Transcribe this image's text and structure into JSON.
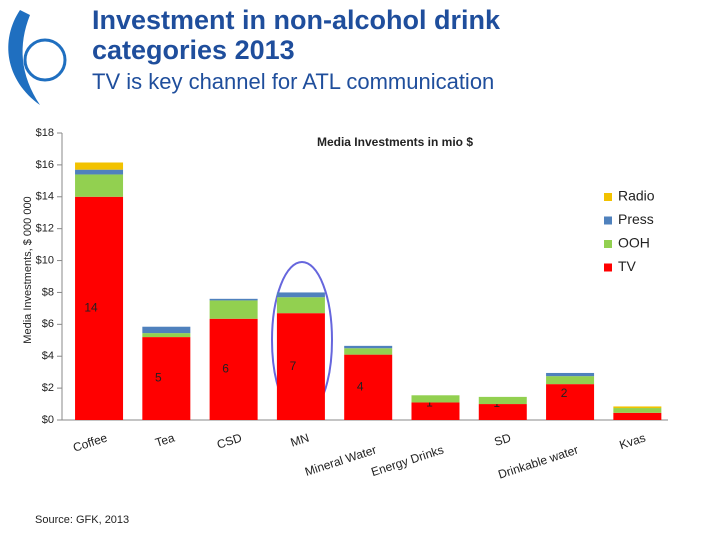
{
  "header": {
    "title": "Investment in non-alcohol drink categories 2013",
    "subtitle": "TV is key channel for ATL communication"
  },
  "source": "Source: GFK, 2013",
  "chart_data": {
    "type": "stacked_bar",
    "title": "Media Investments in mio $",
    "y_label": "Media Investments, $ 000 000",
    "categories": [
      "Coffee",
      "Tea",
      "CSD",
      "MN",
      "Mineral Water",
      "Energy Drinks",
      "SD",
      "Drinkable water",
      "Kvas"
    ],
    "series": [
      {
        "name": "TV",
        "color": "#ff0000",
        "values": [
          14,
          5.2,
          6.35,
          6.7,
          4.1,
          1.1,
          1.0,
          2.25,
          0.45
        ],
        "value_labels": [
          "14",
          "5",
          "6",
          "7",
          "4",
          "1",
          "1",
          "2",
          null
        ]
      },
      {
        "name": "OOH",
        "color": "#92d050",
        "values": [
          1.4,
          0.25,
          1.15,
          1.0,
          0.4,
          0.45,
          0.45,
          0.5,
          0.3
        ]
      },
      {
        "name": "Press",
        "color": "#4f81bd",
        "values": [
          0.3,
          0.4,
          0.1,
          0.3,
          0.15,
          0,
          0,
          0.2,
          0
        ]
      },
      {
        "name": "Radio",
        "color": "#f2c200",
        "values": [
          0.45,
          0,
          0,
          0,
          0,
          0,
          0,
          0,
          0.1
        ]
      }
    ],
    "ylim": [
      0,
      18
    ],
    "yticks": [
      {
        "value": 0,
        "label": "$0"
      },
      {
        "value": 2,
        "label": "$2"
      },
      {
        "value": 4,
        "label": "$4"
      },
      {
        "value": 6,
        "label": "$6"
      },
      {
        "value": 8,
        "label": "$8"
      },
      {
        "value": 10,
        "label": "$10"
      },
      {
        "value": 12,
        "label": "$12"
      },
      {
        "value": 14,
        "label": "$14"
      },
      {
        "value": 16,
        "label": "$16"
      },
      {
        "value": 18,
        "label": "$18"
      }
    ],
    "legend": "right"
  }
}
